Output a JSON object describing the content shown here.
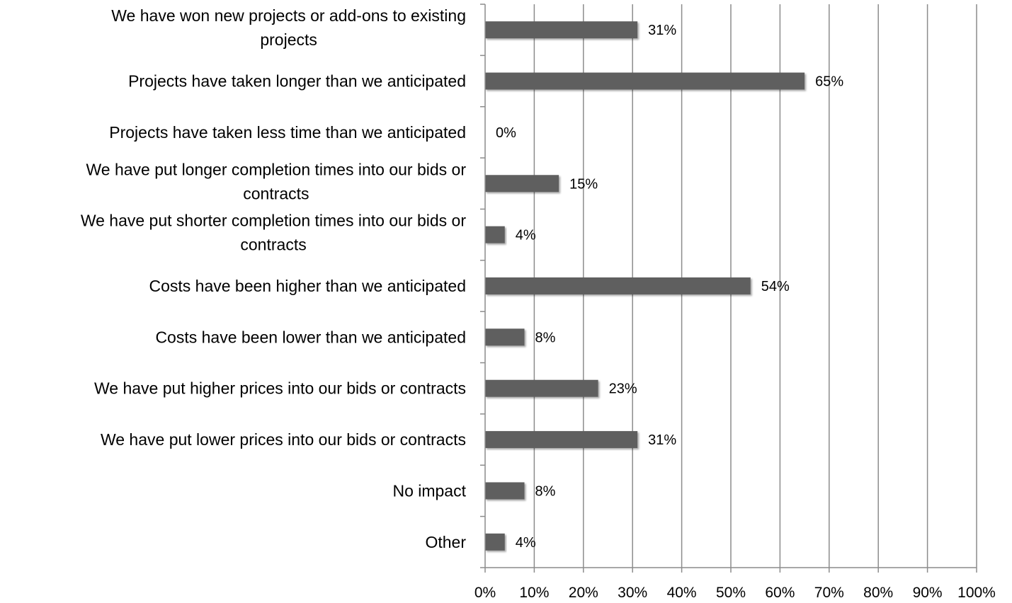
{
  "chart_data": {
    "type": "bar",
    "orientation": "horizontal",
    "categories": [
      "We have won new projects or add-ons to existing projects",
      "Projects have taken longer than we anticipated",
      "Projects have taken less time than we anticipated",
      "We have put longer completion times into our bids or contracts",
      "We have put shorter completion times into our bids or contracts",
      "Costs have been higher than we anticipated",
      "Costs have been lower than we anticipated",
      "We have put higher prices into our bids or contracts",
      "We have put lower prices into our bids or contracts",
      "No impact",
      "Other"
    ],
    "category_lines": [
      [
        "We have won new projects or add-ons to existing",
        "projects"
      ],
      [
        "Projects have taken longer than we anticipated"
      ],
      [
        "Projects have taken less time than we anticipated"
      ],
      [
        "We have put longer completion times into our bids or",
        "contracts"
      ],
      [
        "We have put shorter completion times into our bids or",
        "contracts"
      ],
      [
        "Costs have been higher than we anticipated"
      ],
      [
        "Costs have been lower than we anticipated"
      ],
      [
        "We have put higher prices into our bids or contracts"
      ],
      [
        "We have put lower prices into our bids or contracts"
      ],
      [
        "No impact"
      ],
      [
        "Other"
      ]
    ],
    "values": [
      31,
      65,
      0,
      15,
      4,
      54,
      8,
      23,
      31,
      8,
      4
    ],
    "value_labels": [
      "31%",
      "65%",
      "0%",
      "15%",
      "4%",
      "54%",
      "8%",
      "23%",
      "31%",
      "8%",
      "4%"
    ],
    "xlim": [
      0,
      100
    ],
    "x_ticks": [
      0,
      10,
      20,
      30,
      40,
      50,
      60,
      70,
      80,
      90,
      100
    ],
    "x_tick_labels": [
      "0%",
      "10%",
      "20%",
      "30%",
      "40%",
      "50%",
      "60%",
      "70%",
      "80%",
      "90%",
      "100%"
    ],
    "grid": "vertical",
    "legend": "none",
    "bar_color": "#5f5f5f",
    "grid_color": "#8c8c8c"
  }
}
